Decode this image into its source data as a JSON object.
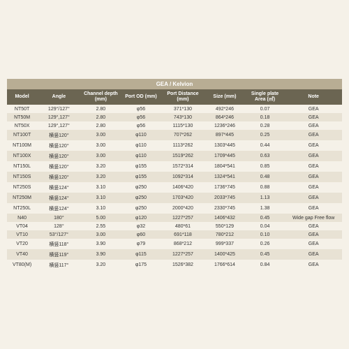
{
  "title": "GEA / Kelvion",
  "columns": [
    "Model",
    "Angle",
    "Channel depth (mm)",
    "Port OD (mm)",
    "Port Distance (mm)",
    "Size (mm)",
    "Single plate Area (㎡)",
    "Note"
  ],
  "rows": [
    [
      "NT50T",
      "129°/127°",
      "2.80",
      "φ56",
      "371*130",
      "492*246",
      "0.07",
      "GEA"
    ],
    [
      "NT50M",
      "129°,127°",
      "2.80",
      "φ56",
      "743*130",
      "864*246",
      "0.18",
      "GEA"
    ],
    [
      "NT50X",
      "129°,127°",
      "2.80",
      "φ56",
      "1115*130",
      "1236*246",
      "0.28",
      "GEA"
    ],
    [
      "NT100T",
      "横竖120°",
      "3.00",
      "φ110",
      "707*262",
      "897*445",
      "0.25",
      "GEA"
    ],
    [
      "NT100M",
      "横竖120°",
      "3.00",
      "φ110",
      "1113*262",
      "1303*445",
      "0.44",
      "GEA"
    ],
    [
      "NT100X",
      "横竖120°",
      "3.00",
      "φ110",
      "1519*262",
      "1709*445",
      "0.63",
      "GEA"
    ],
    [
      "NT150L",
      "横竖120°",
      "3.20",
      "φ155",
      "1572*314",
      "1804*541",
      "0.85",
      "GEA"
    ],
    [
      "NT150S",
      "横竖120°",
      "3.20",
      "φ155",
      "1092*314",
      "1324*541",
      "0.48",
      "GEA"
    ],
    [
      "NT250S",
      "横竖124°",
      "3.10",
      "φ250",
      "1406*420",
      "1736*745",
      "0.88",
      "GEA"
    ],
    [
      "NT250M",
      "横竖124°",
      "3.10",
      "φ250",
      "1703*420",
      "2033*745",
      "1.13",
      "GEA"
    ],
    [
      "NT250L",
      "横竖124°",
      "3.10",
      "φ250",
      "2000*420",
      "2330*745",
      "1.38",
      "GEA"
    ],
    [
      "N40",
      "180°",
      "5.00",
      "φ120",
      "1227*257",
      "1406*432",
      "0.45",
      "Wide gap Free flow"
    ],
    [
      "VT04",
      "128°",
      "2.55",
      "φ32",
      "480*61",
      "550*129",
      "0.04",
      "GEA"
    ],
    [
      "VT10",
      "53°/127°",
      "3.00",
      "φ60",
      "691*118",
      "780*212",
      "0.10",
      "GEA"
    ],
    [
      "VT20",
      "横竖118°",
      "3.90",
      "φ79",
      "868*212",
      "999*337",
      "0.26",
      "GEA"
    ],
    [
      "VT40",
      "横竖119°",
      "3.90",
      "φ115",
      "1227*257",
      "1400*425",
      "0.45",
      "GEA"
    ],
    [
      "VT80(M)",
      "横竖117°",
      "3.20",
      "φ175",
      "1526*382",
      "1766*614",
      "0.84",
      "GEA"
    ]
  ],
  "style": {
    "title_bg": "#b8ad94",
    "header_bg": "#6b6552",
    "row_odd_bg": "#f5f1e8",
    "row_even_bg": "#e8e2d4",
    "page_bg": "#f5f1e8",
    "header_color": "#ffffff",
    "cell_color": "#333333",
    "font_size": 7,
    "col_classes": [
      "col-model",
      "col-angle",
      "col-depth",
      "col-port",
      "col-dist",
      "col-size",
      "col-area",
      "col-note"
    ]
  }
}
